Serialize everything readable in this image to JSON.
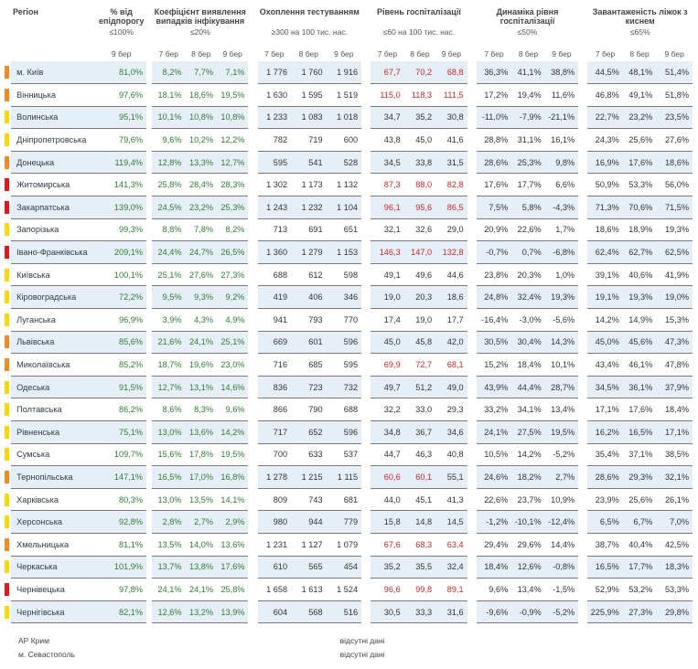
{
  "headers": {
    "region": "Регіон",
    "epid": {
      "title": "% від епідпорогу",
      "sub": "≤100%"
    },
    "detect": {
      "title": "Коефіцієнт виявлення випадків інфікування",
      "sub": "≤20%"
    },
    "testing": {
      "title": "Охоплення тестуванням",
      "sub": "≥300 на 100 тис. нас."
    },
    "hosp": {
      "title": "Рівень госпіталізації",
      "sub": "≤60 на 100 тис. нас."
    },
    "dyn": {
      "title": "Динаміка рівня госпіталізації",
      "sub": "≤50%"
    },
    "beds": {
      "title": "Завантаженість ліжок з киснем",
      "sub": "≤65%"
    },
    "d7": "7 бер",
    "d8": "8 бер",
    "d9": "9 бер"
  },
  "colors": {
    "red": "#e0191e",
    "orange": "#f08a24",
    "yellow": "#ffd60a"
  },
  "rows": [
    {
      "name": "м. Київ",
      "level": "orange",
      "epid": "81,0%",
      "det": [
        "8,2%",
        "7,7%",
        "7,1%"
      ],
      "test": [
        "1 776",
        "1 760",
        "1 916"
      ],
      "hosp": [
        "67,7",
        "70,2",
        "68,8"
      ],
      "dyn": [
        "36,3%",
        "41,1%",
        "38,8%"
      ],
      "beds": [
        "44,5%",
        "48,1%",
        "51,4%"
      ]
    },
    {
      "name": "Вінницька",
      "level": "orange",
      "epid": "97,6%",
      "det": [
        "18,1%",
        "18,6%",
        "19,5%"
      ],
      "test": [
        "1 630",
        "1 595",
        "1 519"
      ],
      "hosp": [
        "115,0",
        "118,3",
        "111,5"
      ],
      "dyn": [
        "17,2%",
        "19,4%",
        "11,6%"
      ],
      "beds": [
        "46,8%",
        "49,1%",
        "51,8%"
      ]
    },
    {
      "name": "Волинська",
      "level": "yellow",
      "epid": "95,1%",
      "det": [
        "10,1%",
        "10,8%",
        "10,8%"
      ],
      "test": [
        "1 233",
        "1 083",
        "1 018"
      ],
      "hosp": [
        "34,7",
        "35,2",
        "30,8"
      ],
      "dyn": [
        "-11,0%",
        "-7,9%",
        "-21,1%"
      ],
      "beds": [
        "22,7%",
        "23,2%",
        "23,5%"
      ]
    },
    {
      "name": "Дніпропетровська",
      "level": "yellow",
      "epid": "79,6%",
      "det": [
        "9,6%",
        "10,2%",
        "12,2%"
      ],
      "test": [
        "782",
        "719",
        "600"
      ],
      "hosp": [
        "43,8",
        "45,0",
        "41,6"
      ],
      "dyn": [
        "28,8%",
        "31,1%",
        "16,1%"
      ],
      "beds": [
        "24,3%",
        "25,6%",
        "27,6%"
      ]
    },
    {
      "name": "Донецька",
      "level": "orange",
      "epid": "119,4%",
      "det": [
        "12,8%",
        "13,3%",
        "12,7%"
      ],
      "test": [
        "595",
        "541",
        "528"
      ],
      "hosp": [
        "34,5",
        "33,8",
        "31,5"
      ],
      "dyn": [
        "28,6%",
        "25,3%",
        "9,8%"
      ],
      "beds": [
        "16,9%",
        "17,6%",
        "18,6%"
      ]
    },
    {
      "name": "Житомирська",
      "level": "red",
      "epid": "141,3%",
      "det": [
        "25,8%",
        "28,4%",
        "28,3%"
      ],
      "test": [
        "1 302",
        "1 173",
        "1 132"
      ],
      "hosp": [
        "87,3",
        "88,0",
        "82,8"
      ],
      "dyn": [
        "17,6%",
        "17,7%",
        "6,6%"
      ],
      "beds": [
        "50,9%",
        "53,3%",
        "56,0%"
      ]
    },
    {
      "name": "Закарпатська",
      "level": "red",
      "epid": "139,0%",
      "det": [
        "24,5%",
        "23,2%",
        "25,3%"
      ],
      "test": [
        "1 243",
        "1 232",
        "1 104"
      ],
      "hosp": [
        "96,1",
        "95,6",
        "86,5"
      ],
      "dyn": [
        "7,5%",
        "5,8%",
        "-4,3%"
      ],
      "beds": [
        "71,3%",
        "70,6%",
        "71,5%"
      ]
    },
    {
      "name": "Запорізька",
      "level": "yellow",
      "epid": "99,3%",
      "det": [
        "8,8%",
        "7,8%",
        "8,2%"
      ],
      "test": [
        "713",
        "691",
        "651"
      ],
      "hosp": [
        "32,1",
        "32,6",
        "29,0"
      ],
      "dyn": [
        "20,9%",
        "22,6%",
        "1,7%"
      ],
      "beds": [
        "18,6%",
        "18,9%",
        "19,3%"
      ]
    },
    {
      "name": "Івано-Франківська",
      "level": "red",
      "epid": "209,1%",
      "det": [
        "24,4%",
        "24,7%",
        "26,5%"
      ],
      "test": [
        "1 360",
        "1 279",
        "1 153"
      ],
      "hosp": [
        "146,3",
        "147,0",
        "132,8"
      ],
      "dyn": [
        "-0,7%",
        "0,7%",
        "-6,8%"
      ],
      "beds": [
        "62,4%",
        "62,7%",
        "62,5%"
      ]
    },
    {
      "name": "Київська",
      "level": "yellow",
      "epid": "100,1%",
      "det": [
        "25,1%",
        "27,6%",
        "27,3%"
      ],
      "test": [
        "688",
        "612",
        "598"
      ],
      "hosp": [
        "49,1",
        "49,6",
        "44,6"
      ],
      "dyn": [
        "23,8%",
        "20,3%",
        "1,0%"
      ],
      "beds": [
        "39,1%",
        "40,6%",
        "41,9%"
      ]
    },
    {
      "name": "Кіровоградська",
      "level": "yellow",
      "epid": "72,2%",
      "det": [
        "9,5%",
        "9,3%",
        "9,2%"
      ],
      "test": [
        "419",
        "406",
        "346"
      ],
      "hosp": [
        "19,0",
        "20,3",
        "18,6"
      ],
      "dyn": [
        "24,8%",
        "32,4%",
        "19,3%"
      ],
      "beds": [
        "19,1%",
        "19,3%",
        "19,0%"
      ]
    },
    {
      "name": "Луганська",
      "level": "yellow",
      "epid": "96,9%",
      "det": [
        "3,9%",
        "4,3%",
        "4,9%"
      ],
      "test": [
        "941",
        "793",
        "770"
      ],
      "hosp": [
        "17,4",
        "19,0",
        "17,7"
      ],
      "dyn": [
        "-16,4%",
        "-3,0%",
        "-5,6%"
      ],
      "beds": [
        "14,2%",
        "14,9%",
        "15,3%"
      ]
    },
    {
      "name": "Львівська",
      "level": "orange",
      "epid": "85,6%",
      "det": [
        "21,6%",
        "24,1%",
        "25,1%"
      ],
      "test": [
        "669",
        "601",
        "596"
      ],
      "hosp": [
        "45,0",
        "45,8",
        "42,0"
      ],
      "dyn": [
        "30,5%",
        "30,4%",
        "14,3%"
      ],
      "beds": [
        "45,0%",
        "45,6%",
        "47,3%"
      ]
    },
    {
      "name": "Миколаївська",
      "level": "orange",
      "epid": "85,2%",
      "det": [
        "18,7%",
        "19,6%",
        "23,0%"
      ],
      "test": [
        "716",
        "685",
        "595"
      ],
      "hosp": [
        "69,9",
        "72,7",
        "68,1"
      ],
      "dyn": [
        "15,2%",
        "18,4%",
        "10,1%"
      ],
      "beds": [
        "43,4%",
        "46,1%",
        "47,8%"
      ]
    },
    {
      "name": "Одеська",
      "level": "yellow",
      "epid": "91,5%",
      "det": [
        "12,7%",
        "13,1%",
        "14,6%"
      ],
      "test": [
        "836",
        "723",
        "732"
      ],
      "hosp": [
        "49,7",
        "51,2",
        "49,0"
      ],
      "dyn": [
        "43,9%",
        "44,4%",
        "28,7%"
      ],
      "beds": [
        "34,5%",
        "36,1%",
        "37,9%"
      ]
    },
    {
      "name": "Полтавська",
      "level": "yellow",
      "epid": "86,2%",
      "det": [
        "8,6%",
        "8,3%",
        "9,6%"
      ],
      "test": [
        "866",
        "790",
        "688"
      ],
      "hosp": [
        "32,2",
        "33,0",
        "29,3"
      ],
      "dyn": [
        "33,2%",
        "34,1%",
        "13,4%"
      ],
      "beds": [
        "17,1%",
        "17,6%",
        "18,4%"
      ]
    },
    {
      "name": "Рівненська",
      "level": "yellow",
      "epid": "75,1%",
      "det": [
        "13,0%",
        "13,6%",
        "14,2%"
      ],
      "test": [
        "717",
        "652",
        "596"
      ],
      "hosp": [
        "34,8",
        "36,7",
        "34,6"
      ],
      "dyn": [
        "24,1%",
        "27,5%",
        "19,5%"
      ],
      "beds": [
        "16,2%",
        "16,5%",
        "17,1%"
      ]
    },
    {
      "name": "Сумська",
      "level": "yellow",
      "epid": "109,7%",
      "det": [
        "15,6%",
        "17,8%",
        "19,5%"
      ],
      "test": [
        "700",
        "633",
        "537"
      ],
      "hosp": [
        "44,7",
        "46,3",
        "40,8"
      ],
      "dyn": [
        "10,5%",
        "14,2%",
        "-5,2%"
      ],
      "beds": [
        "35,4%",
        "37,1%",
        "38,5%"
      ]
    },
    {
      "name": "Тернопільська",
      "level": "orange",
      "epid": "147,1%",
      "det": [
        "16,5%",
        "17,0%",
        "16,8%"
      ],
      "test": [
        "1 278",
        "1 215",
        "1 115"
      ],
      "hosp": [
        "60,6",
        "60,1",
        "55,1"
      ],
      "dyn": [
        "24,6%",
        "18,2%",
        "2,7%"
      ],
      "beds": [
        "28,6%",
        "29,3%",
        "32,1%"
      ]
    },
    {
      "name": "Харківська",
      "level": "yellow",
      "epid": "80,3%",
      "det": [
        "13,0%",
        "13,5%",
        "14,1%"
      ],
      "test": [
        "809",
        "743",
        "681"
      ],
      "hosp": [
        "44,0",
        "45,1",
        "41,3"
      ],
      "dyn": [
        "22,6%",
        "23,7%",
        "10,9%"
      ],
      "beds": [
        "23,9%",
        "25,6%",
        "26,1%"
      ]
    },
    {
      "name": "Херсонська",
      "level": "yellow",
      "epid": "92,8%",
      "det": [
        "2,8%",
        "2,7%",
        "2,9%"
      ],
      "test": [
        "980",
        "944",
        "779"
      ],
      "hosp": [
        "15,8",
        "14,8",
        "14,5"
      ],
      "dyn": [
        "-1,2%",
        "-10,1%",
        "-12,4%"
      ],
      "beds": [
        "6,5%",
        "6,7%",
        "7,0%"
      ]
    },
    {
      "name": "Хмельницька",
      "level": "orange",
      "epid": "81,1%",
      "det": [
        "13,5%",
        "14,0%",
        "13,6%"
      ],
      "test": [
        "1 231",
        "1 127",
        "1 079"
      ],
      "hosp": [
        "67,6",
        "68,3",
        "63,4"
      ],
      "dyn": [
        "29,4%",
        "29,6%",
        "14,4%"
      ],
      "beds": [
        "38,7%",
        "40,4%",
        "42,5%"
      ]
    },
    {
      "name": "Черкаська",
      "level": "yellow",
      "epid": "101,9%",
      "det": [
        "13,7%",
        "13,8%",
        "17,6%"
      ],
      "test": [
        "610",
        "565",
        "454"
      ],
      "hosp": [
        "35,2",
        "35,5",
        "32,4"
      ],
      "dyn": [
        "18,4%",
        "12,6%",
        "-0,8%"
      ],
      "beds": [
        "16,5%",
        "17,7%",
        "18,3%"
      ]
    },
    {
      "name": "Чернівецька",
      "level": "red",
      "epid": "97,8%",
      "det": [
        "24,1%",
        "24,1%",
        "25,8%"
      ],
      "test": [
        "1 658",
        "1 613",
        "1 524"
      ],
      "hosp": [
        "96,6",
        "99,8",
        "89,1"
      ],
      "dyn": [
        "9,6%",
        "13,4%",
        "-1,5%"
      ],
      "beds": [
        "52,9%",
        "53,2%",
        "53,3%"
      ]
    },
    {
      "name": "Чернігівська",
      "level": "yellow",
      "epid": "82,1%",
      "det": [
        "12,6%",
        "13,2%",
        "13,9%"
      ],
      "test": [
        "604",
        "568",
        "516"
      ],
      "hosp": [
        "30,5",
        "33,3",
        "31,6"
      ],
      "dyn": [
        "-9,6%",
        "-0,9%",
        "-5,2%"
      ],
      "beds": [
        "225,9%",
        "27,3%",
        "29,8%"
      ]
    }
  ],
  "missing": [
    {
      "name": "АР Крим",
      "text": "відсутні дані"
    },
    {
      "name": "м. Севастополь",
      "text": "відсутні дані"
    }
  ]
}
